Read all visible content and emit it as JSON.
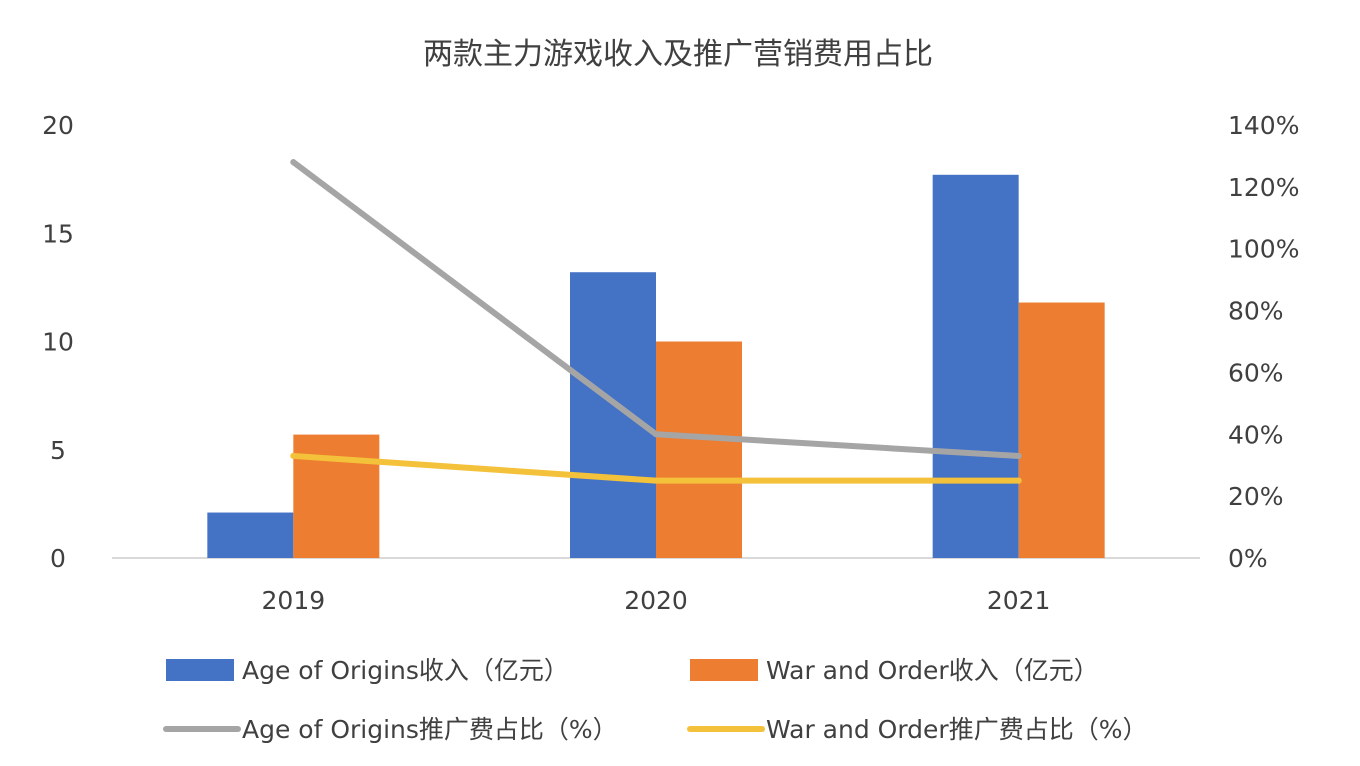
{
  "chart_data": {
    "type": "bar",
    "title": "两款主力游戏收入及推广营销费用占比",
    "categories": [
      "2019",
      "2020",
      "2021"
    ],
    "y_left": {
      "range": [
        0,
        20
      ],
      "ticks": [
        0,
        5,
        10,
        15,
        20
      ],
      "tick_labels": [
        "0",
        "5",
        "10",
        "15",
        "20"
      ]
    },
    "y_right": {
      "range": [
        0,
        140
      ],
      "ticks": [
        0,
        20,
        40,
        60,
        80,
        100,
        120,
        140
      ],
      "tick_labels": [
        "0%",
        "20%",
        "40%",
        "60%",
        "80%",
        "100%",
        "120%",
        "140%"
      ]
    },
    "series": [
      {
        "name": "Age of Origins收入（亿元）",
        "type": "bar",
        "axis": "left",
        "color": "#4472C4",
        "values": [
          2.1,
          13.2,
          17.7
        ]
      },
      {
        "name": "War and Order收入（亿元）",
        "type": "bar",
        "axis": "left",
        "color": "#ED7D31",
        "values": [
          5.7,
          10.0,
          11.8
        ]
      },
      {
        "name": "Age of Origins推广费占比（%）",
        "type": "line",
        "axis": "right",
        "color": "#A5A5A5",
        "values": [
          128,
          40,
          33
        ]
      },
      {
        "name": "War and Order推广费占比（%）",
        "type": "line",
        "axis": "right",
        "color": "#F4C13A",
        "values": [
          33,
          25,
          25
        ]
      }
    ],
    "legend_position": "bottom",
    "grid": false
  }
}
